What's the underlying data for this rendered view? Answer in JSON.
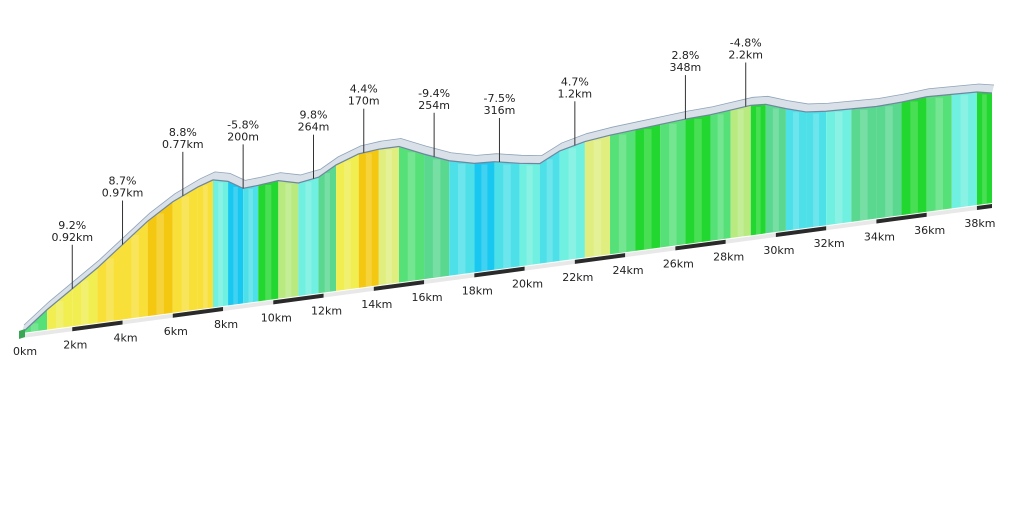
{
  "chart_data": {
    "type": "area",
    "title": "",
    "xlabel": "",
    "ylabel": "",
    "x_unit": "km",
    "x_ticks": [
      "0km",
      "2km",
      "4km",
      "6km",
      "8km",
      "10km",
      "12km",
      "14km",
      "16km",
      "18km",
      "20km",
      "22km",
      "24km",
      "26km",
      "28km",
      "30km",
      "32km",
      "34km",
      "36km",
      "38km"
    ],
    "profile": {
      "km": [
        0,
        1.0,
        2.0,
        3.0,
        4.0,
        5.0,
        6.0,
        7.0,
        7.6,
        8.2,
        8.8,
        9.4,
        10.2,
        11.0,
        11.8,
        12.5,
        13.4,
        14.2,
        15.0,
        16.0,
        17.0,
        18.0,
        18.8,
        19.8,
        20.6,
        21.4,
        22.4,
        23.4,
        24.4,
        25.4,
        26.4,
        27.4,
        28.2,
        29.0,
        29.6,
        30.4,
        31.2,
        32.0,
        33.0,
        34.0,
        35.0,
        36.0,
        37.0,
        38.0,
        38.6
      ],
      "elevation": [
        0,
        40,
        75,
        110,
        150,
        190,
        222,
        245,
        255,
        248,
        230,
        232,
        236,
        226,
        232,
        252,
        268,
        272,
        272,
        250,
        230,
        218,
        216,
        206,
        200,
        220,
        232,
        238,
        242,
        246,
        250,
        252,
        256,
        260,
        258,
        244,
        232,
        228,
        226,
        224,
        226,
        230,
        228,
        226,
        220
      ]
    },
    "segment_gradients": [
      2,
      6,
      5,
      7,
      8,
      9,
      7,
      8,
      -2,
      -6,
      -4,
      1,
      3,
      -2,
      0,
      5,
      9,
      4,
      2,
      0,
      -4,
      -6,
      -4,
      -1,
      -3,
      -2,
      4,
      2,
      1,
      2,
      1,
      2,
      3,
      1,
      0,
      -4,
      -3,
      -1,
      0,
      0,
      1,
      2,
      -1,
      1
    ],
    "gradient_colors": [
      {
        "max": -8,
        "color": "#1e8fe8"
      },
      {
        "max": -5,
        "color": "#18c8f0"
      },
      {
        "max": -3,
        "color": "#4de0e8"
      },
      {
        "max": -1,
        "color": "#70f0e0"
      },
      {
        "max": 0,
        "color": "#5ad890"
      },
      {
        "max": 1,
        "color": "#22d830"
      },
      {
        "max": 2,
        "color": "#56e078"
      },
      {
        "max": 3,
        "color": "#b8ea80"
      },
      {
        "max": 4,
        "color": "#e0ee80"
      },
      {
        "max": 6,
        "color": "#f0ee50"
      },
      {
        "max": 8,
        "color": "#f8e038"
      },
      {
        "max": 99,
        "color": "#f4c810"
      }
    ],
    "annotations": [
      {
        "km": 2.0,
        "grade": "9.2%",
        "length": "0.92km"
      },
      {
        "km": 4.0,
        "grade": "8.7%",
        "length": "0.97km"
      },
      {
        "km": 6.4,
        "grade": "8.8%",
        "length": "0.77km"
      },
      {
        "km": 8.8,
        "grade": "-5.8%",
        "length": "200m"
      },
      {
        "km": 11.6,
        "grade": "9.8%",
        "length": "264m"
      },
      {
        "km": 13.6,
        "grade": "4.4%",
        "length": "170m"
      },
      {
        "km": 16.4,
        "grade": "-9.4%",
        "length": "254m"
      },
      {
        "km": 19.0,
        "grade": "-7.5%",
        "length": "316m"
      },
      {
        "km": 22.0,
        "grade": "4.7%",
        "length": "1.2km"
      },
      {
        "km": 26.4,
        "grade": "2.8%",
        "length": "348m"
      },
      {
        "km": 28.8,
        "grade": "-4.8%",
        "length": "2.2km"
      }
    ]
  }
}
